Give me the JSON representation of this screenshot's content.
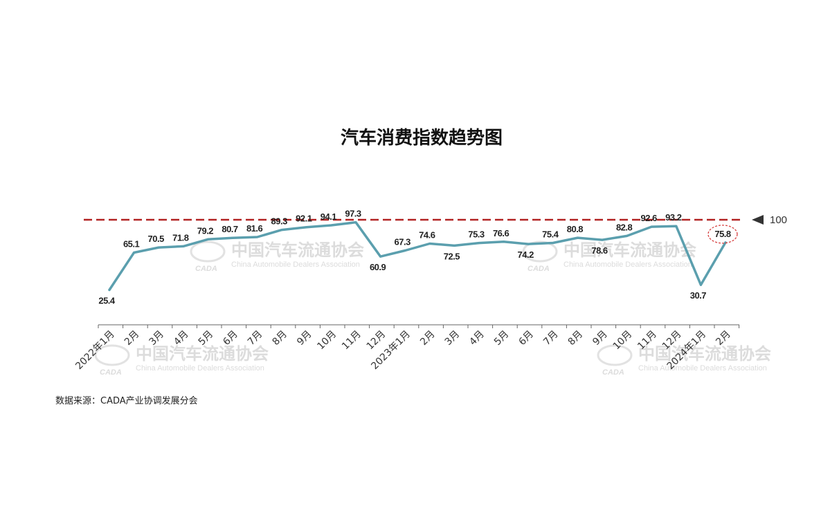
{
  "chart_data": {
    "type": "line",
    "title": "汽车消费指数趋势图",
    "categories": [
      "2022年1月",
      "2月",
      "3月",
      "4月",
      "5月",
      "6月",
      "7月",
      "8月",
      "9月",
      "10月",
      "11月",
      "12月",
      "2023年1月",
      "2月",
      "3月",
      "4月",
      "5月",
      "6月",
      "7月",
      "8月",
      "9月",
      "10月",
      "11月",
      "12月",
      "2024年1月",
      "2月"
    ],
    "series": [
      {
        "values": [
          25.4,
          65.1,
          70.5,
          71.8,
          79.2,
          80.7,
          81.6,
          89.3,
          92.1,
          94.1,
          97.3,
          60.9,
          67.3,
          74.6,
          72.5,
          75.3,
          76.6,
          74.2,
          75.4,
          80.8,
          78.6,
          82.8,
          92.6,
          93.2,
          30.7,
          75.8
        ],
        "color": "#5b9fae"
      }
    ],
    "reference_line": {
      "value": 100,
      "label": "100",
      "color": "#b22222",
      "style": "dashed"
    },
    "highlight": {
      "index": 25,
      "style": "dashed-circle",
      "color": "#d64040"
    },
    "ylim": [
      0,
      100
    ],
    "grid": false,
    "xlabel": "",
    "ylabel": ""
  },
  "source_note": "数据来源：CADA产业协调发展分会",
  "watermark": {
    "cn": "中国汽车流通协会",
    "en": "China Automobile Dealers Association",
    "logo": "CADA"
  }
}
